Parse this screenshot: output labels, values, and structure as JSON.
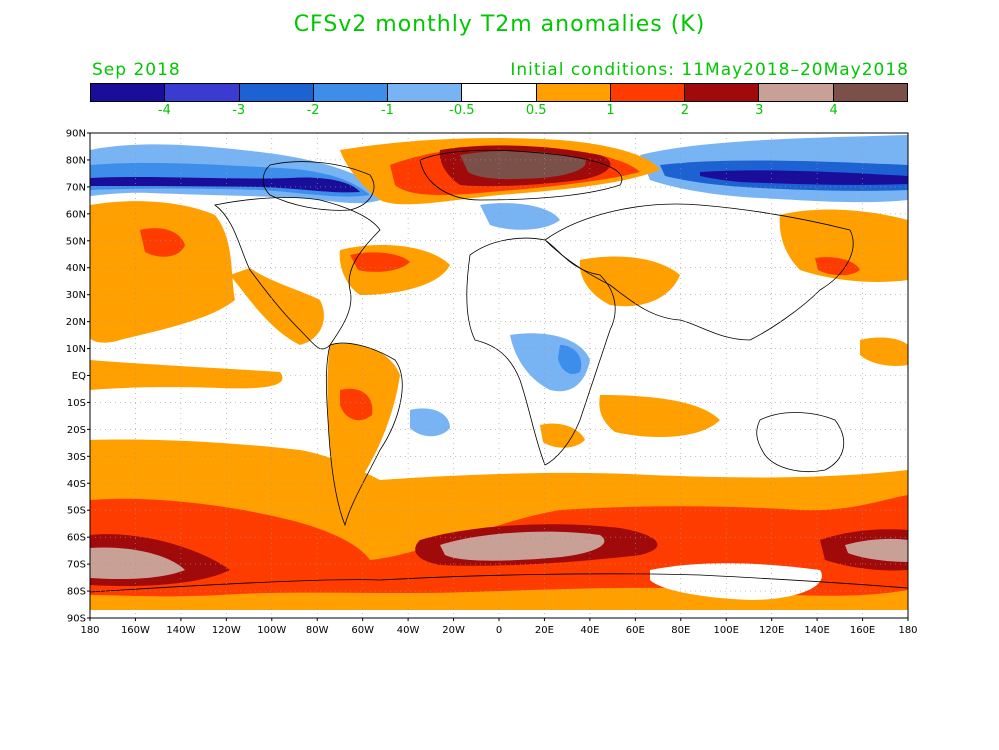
{
  "title": "CFSv2 monthly T2m anomalies (K)",
  "subtitle_left": "Sep 2018",
  "subtitle_right": "Initial conditions: 11May2018–20May2018",
  "colors": {
    "text_green": "#00c800",
    "land_outline": "#000000"
  },
  "colorbar": {
    "colors": [
      "#1a0d9a",
      "#3a3bd0",
      "#1c62d2",
      "#3c8eea",
      "#78b4f4",
      "#ffffff",
      "#ffa000",
      "#ff3c00",
      "#a00a0a",
      "#c8a096",
      "#7a5048"
    ],
    "labels": [
      "-4",
      "-3",
      "-2",
      "-1",
      "-0.5",
      "0.5",
      "1",
      "2",
      "3",
      "4"
    ]
  },
  "map": {
    "lat_labels": [
      "90N",
      "80N",
      "70N",
      "60N",
      "50N",
      "40N",
      "30N",
      "20N",
      "10N",
      "EQ",
      "10S",
      "20S",
      "30S",
      "40S",
      "50S",
      "60S",
      "70S",
      "80S",
      "90S"
    ],
    "lon_labels": [
      "180",
      "160W",
      "140W",
      "120W",
      "100W",
      "80W",
      "60W",
      "40W",
      "20W",
      "0",
      "20E",
      "40E",
      "60E",
      "80E",
      "100E",
      "120E",
      "140E",
      "160E",
      "180"
    ]
  }
}
